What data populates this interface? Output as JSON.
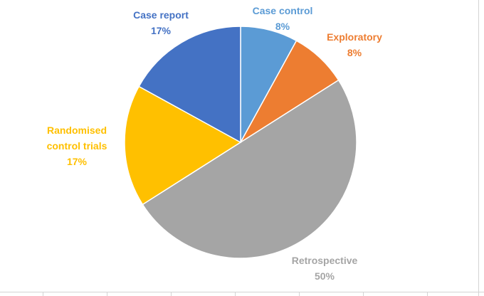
{
  "chart_data": {
    "type": "pie",
    "categories": [
      "Case control",
      "Exploratory",
      "Retrospective",
      "Randomised control trials",
      "Case report"
    ],
    "values": [
      8,
      8,
      50,
      17,
      17
    ],
    "value_labels": [
      "8%",
      "8%",
      "50%",
      "17%",
      "17%"
    ],
    "colors": [
      "#5b9bd5",
      "#ed7d31",
      "#a5a5a5",
      "#ffc000",
      "#4472c4"
    ]
  }
}
